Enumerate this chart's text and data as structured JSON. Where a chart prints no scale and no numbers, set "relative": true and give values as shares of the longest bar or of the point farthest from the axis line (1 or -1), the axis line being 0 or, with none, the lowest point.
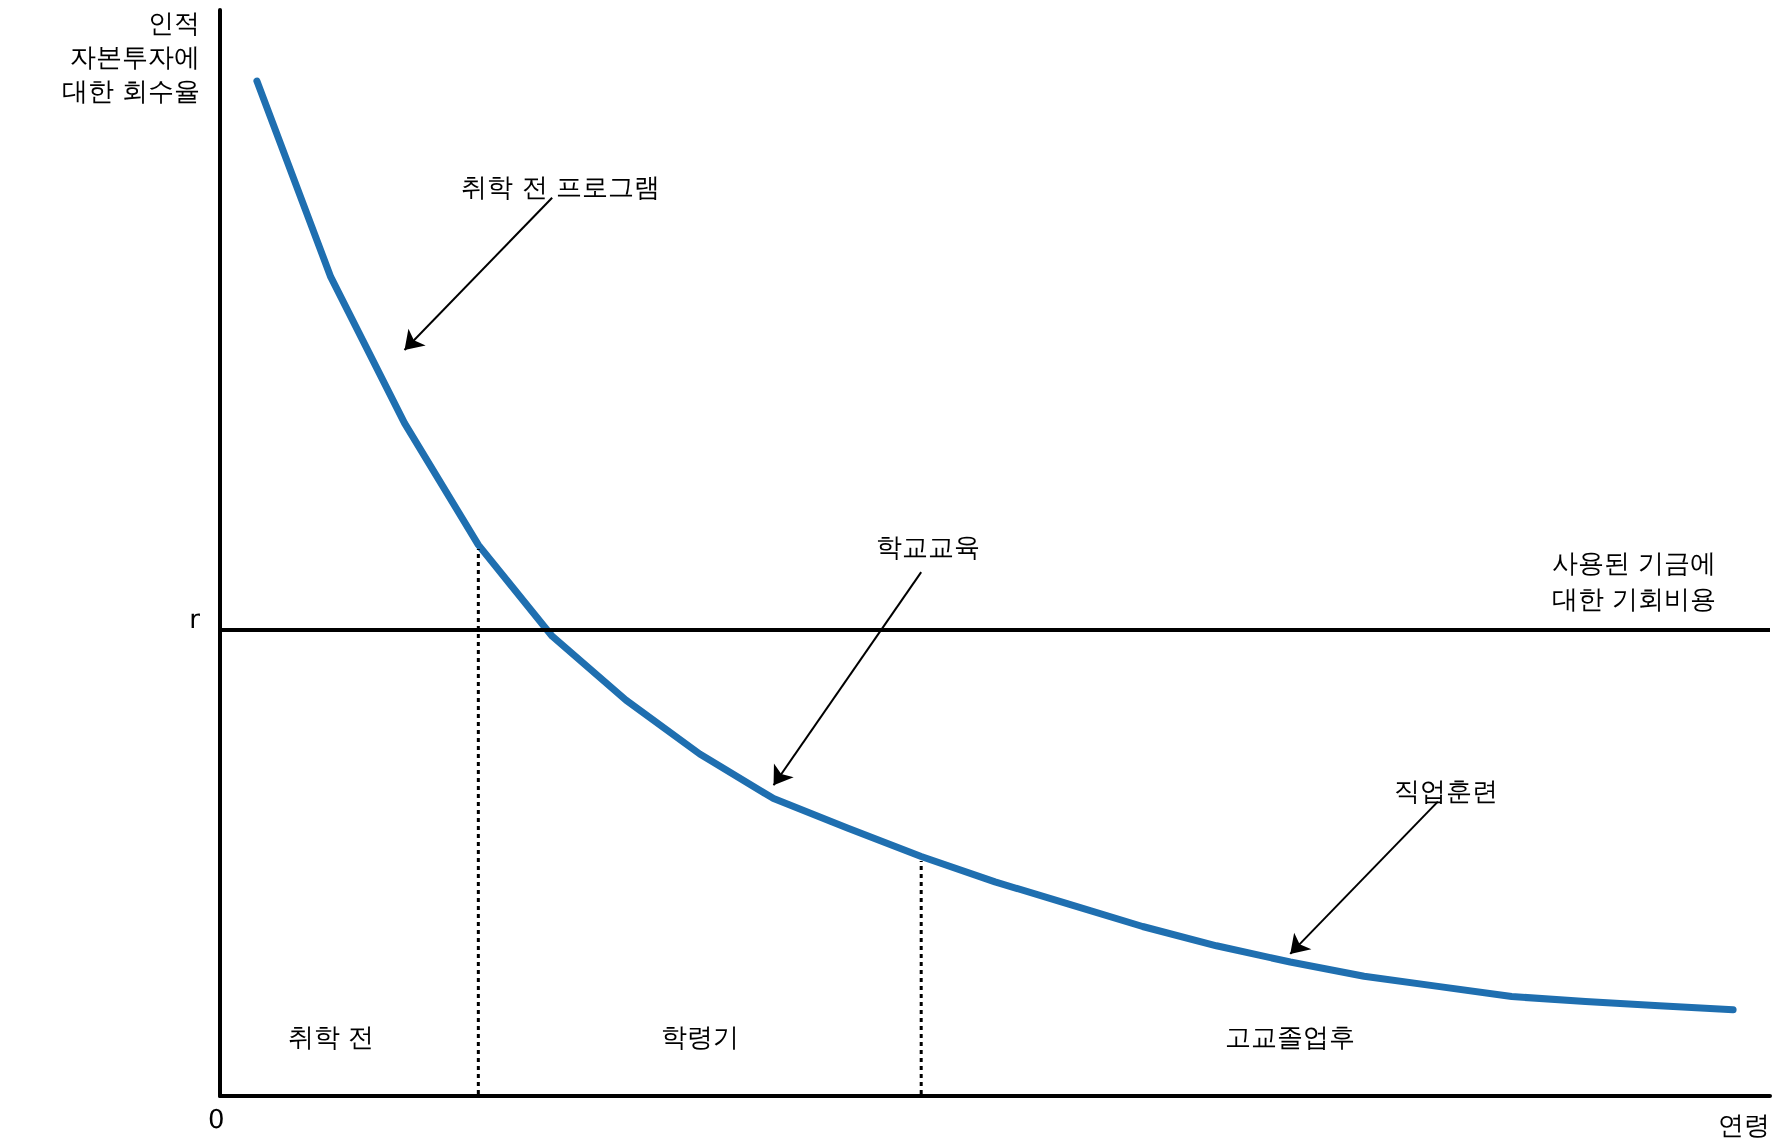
{
  "chart_data": {
    "type": "line",
    "relative": true,
    "ylabel": "인적\n자본투자에\n대한 회수율",
    "xlabel": "연령",
    "marker": "none",
    "categories": [
      null,
      null,
      null,
      null,
      null,
      null,
      null,
      null,
      null,
      null,
      null,
      null,
      null,
      null,
      null,
      null,
      null,
      null,
      null,
      null,
      null
    ],
    "series": [
      {
        "color": "#1f6fb0",
        "values": [
          1.0,
          0.807,
          0.663,
          0.543,
          0.453,
          0.39,
          0.337,
          0.293,
          0.264,
          0.236,
          0.211,
          0.189,
          0.167,
          0.148,
          0.132,
          0.118,
          0.108,
          0.098,
          0.093,
          0.089,
          0.085
        ]
      }
    ],
    "ref_lines": [
      {
        "axis": "y",
        "value": 0.463,
        "label": "사용된 기금에\n대한 기회비용",
        "color": "#000000",
        "line_style": "solid"
      }
    ],
    "annotations": [
      "0",
      "r",
      "취학 전 프로그램",
      "학교교육",
      "직업훈련",
      "취학 전",
      "학령기",
      "고교졸업후"
    ]
  }
}
